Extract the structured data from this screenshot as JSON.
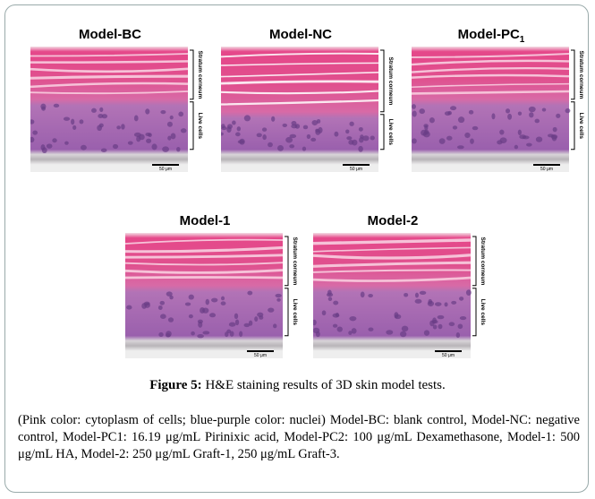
{
  "figure": {
    "panels": [
      {
        "title": "Model-BC",
        "stratum": "Stratum corneum",
        "live": "Live cells",
        "scale": "50 μm"
      },
      {
        "title": "Model-NC",
        "stratum": "Stratum corneum",
        "live": "Live cells",
        "scale": "50 μm"
      },
      {
        "title": "Model-PC",
        "subscript": "1",
        "stratum": "Stratum corneum",
        "live": "Live cells",
        "scale": "50 μm"
      },
      {
        "title": "Model-1",
        "stratum": "Stratum corneum",
        "live": "Live cells",
        "scale": "50 μm"
      },
      {
        "title": "Model-2",
        "stratum": "Stratum corneum",
        "live": "Live cells",
        "scale": "50 μm"
      }
    ],
    "caption_label": "Figure 5:",
    "caption_text": "H&E staining results of 3D skin model tests.",
    "description": "(Pink color: cytoplasm of cells; blue-purple color: nuclei) Model-BC: blank control, Model-NC: negative control, Model-PC1: 16.19 μg/mL Pirinixic acid, Model-PC2: 100 μg/mL Dexamethasone, Model-1: 500 μg/mL HA, Model-2: 250 μg/mL Graft-1, 250 μg/mL Graft-3."
  }
}
